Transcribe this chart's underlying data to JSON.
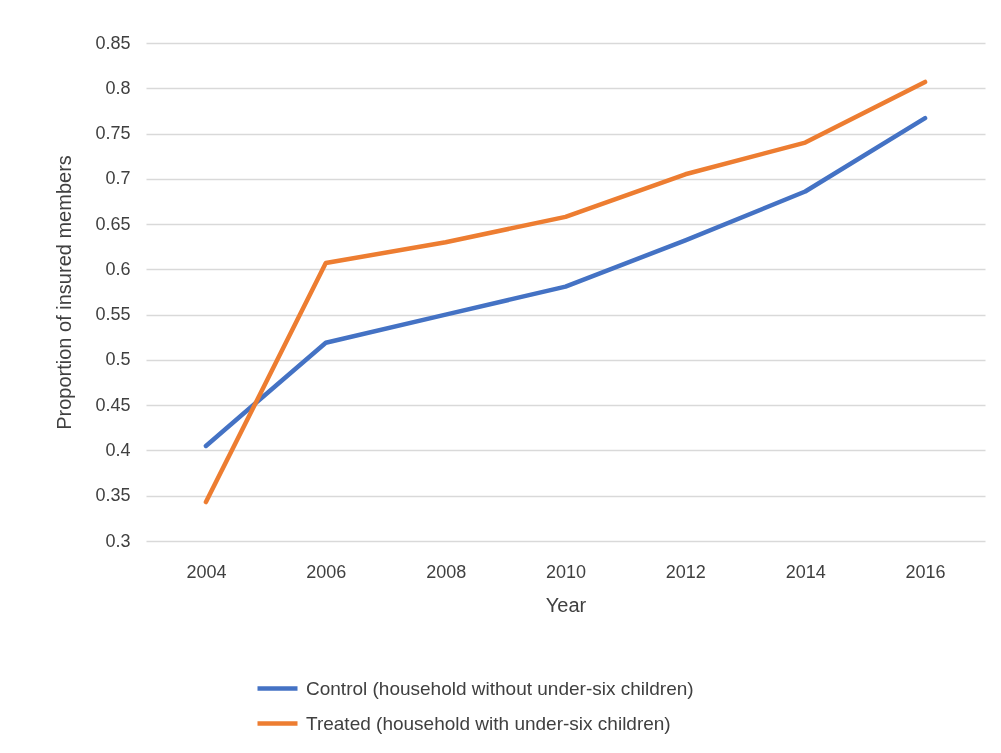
{
  "chart_data": {
    "type": "line",
    "xlabel": "Year",
    "ylabel": "Proportion of insured members",
    "categories": [
      "2004",
      "2006",
      "2008",
      "2010",
      "2012",
      "2014",
      "2016"
    ],
    "series": [
      {
        "name": "Control (household without under-six children)",
        "color": "#4472c4",
        "values": [
          0.405,
          0.519,
          0.55,
          0.581,
          0.632,
          0.686,
          0.767
        ]
      },
      {
        "name": "Treated (household with under-six children)",
        "color": "#ed7d31",
        "values": [
          0.343,
          0.607,
          0.63,
          0.658,
          0.705,
          0.74,
          0.807
        ]
      }
    ],
    "ylim": [
      0.3,
      0.85
    ],
    "yticks": [
      0.3,
      0.35,
      0.4,
      0.45,
      0.5,
      0.55,
      0.6,
      0.65,
      0.7,
      0.75,
      0.8,
      0.85
    ],
    "grid": "y",
    "legend": "bottom"
  }
}
